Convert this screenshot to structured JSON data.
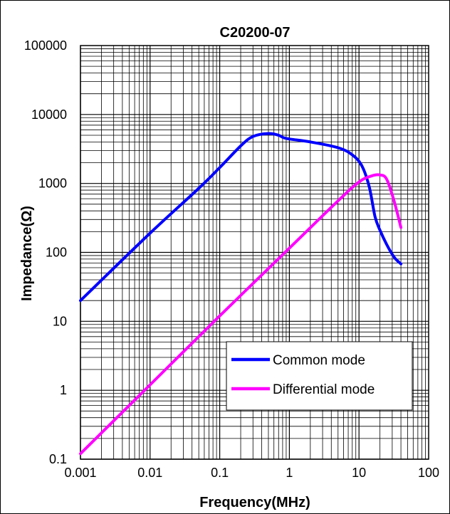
{
  "chart_data": {
    "type": "line",
    "title": "C20200-07",
    "xlabel": "Frequency(MHz)",
    "ylabel": "Impedance(Ω)",
    "x_scale": "log",
    "y_scale": "log",
    "xlim": [
      0.001,
      100
    ],
    "ylim": [
      0.1,
      100000
    ],
    "x_tick_labels": [
      "0.001",
      "0.01",
      "0.1",
      "1",
      "10",
      "100"
    ],
    "y_tick_labels": [
      "0.1",
      "1",
      "10",
      "100",
      "1000",
      "10000",
      "100000"
    ],
    "grid": true,
    "legend_position": "bottom-right",
    "series": [
      {
        "name": "Common mode",
        "color": "#0000ff",
        "points": [
          [
            0.001,
            20
          ],
          [
            0.01,
            190
          ],
          [
            0.05,
            850
          ],
          [
            0.1,
            1700
          ],
          [
            0.2,
            3500
          ],
          [
            0.3,
            4800
          ],
          [
            0.5,
            5300
          ],
          [
            0.7,
            5000
          ],
          [
            0.9,
            4500
          ],
          [
            2,
            4000
          ],
          [
            5,
            3300
          ],
          [
            8,
            2600
          ],
          [
            11,
            1800
          ],
          [
            14,
            900
          ],
          [
            17,
            330
          ],
          [
            20,
            210
          ],
          [
            25,
            130
          ],
          [
            32,
            85
          ],
          [
            40,
            68
          ]
        ]
      },
      {
        "name": "Differential mode",
        "color": "#ff00ff",
        "points": [
          [
            0.001,
            0.12
          ],
          [
            0.01,
            1.2
          ],
          [
            0.1,
            12
          ],
          [
            1,
            115
          ],
          [
            5,
            560
          ],
          [
            10,
            1050
          ],
          [
            15,
            1280
          ],
          [
            20,
            1330
          ],
          [
            25,
            1150
          ],
          [
            32,
            550
          ],
          [
            40,
            230
          ]
        ]
      }
    ]
  }
}
